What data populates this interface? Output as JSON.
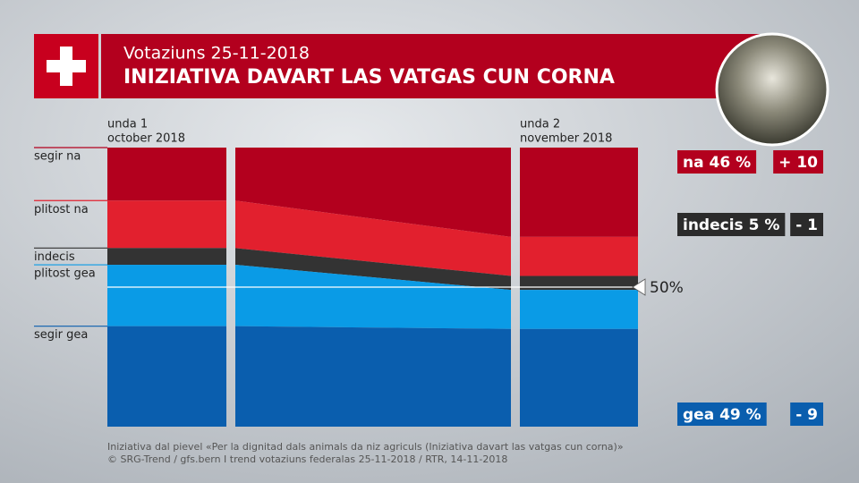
{
  "chart_data": {
    "type": "stacked_area",
    "subtitle": "Votaziuns 25-11-2018",
    "title": "INIZIATIVA DAVART LAS VATGAS CUN CORNA",
    "categories": [
      "unda 1",
      "unda 2"
    ],
    "category_dates": [
      "october 2018",
      "november 2018"
    ],
    "ylim": [
      0,
      100
    ],
    "series": [
      {
        "name": "segir na",
        "color": "#b3001e",
        "values": [
          19,
          32
        ]
      },
      {
        "name": "plitost na",
        "color": "#e2202e",
        "values": [
          17,
          14
        ]
      },
      {
        "name": "indecis",
        "color": "#333333",
        "values": [
          6,
          5
        ]
      },
      {
        "name": "plitost gea",
        "color": "#0a9be6",
        "values": [
          22,
          14
        ]
      },
      {
        "name": "segir gea",
        "color": "#0a5eae",
        "values": [
          36,
          35
        ]
      }
    ],
    "reference": {
      "value": 50,
      "label": "50%"
    },
    "summary": [
      {
        "label": "na",
        "value": 46,
        "value_label": "46 %",
        "change": 10,
        "change_label": "+ 10",
        "color": "#b3001e"
      },
      {
        "label": "indecis",
        "value": 5,
        "value_label": "5 %",
        "change": -1,
        "change_label": "- 1",
        "color": "#2b2b2b"
      },
      {
        "label": "gea",
        "value": 49,
        "value_label": "49 %",
        "change": -9,
        "change_label": "- 9",
        "color": "#0a5eae"
      }
    ],
    "footnotes": [
      "Iniziativa dal pievel «Per la dignitad dals animals da niz agriculs (Iniziativa davart las vatgas cun corna)»",
      "© SRG-Trend / gfs.bern  I  trend votaziuns federalas 25-11-2018 / RTR, 14-11-2018"
    ]
  }
}
